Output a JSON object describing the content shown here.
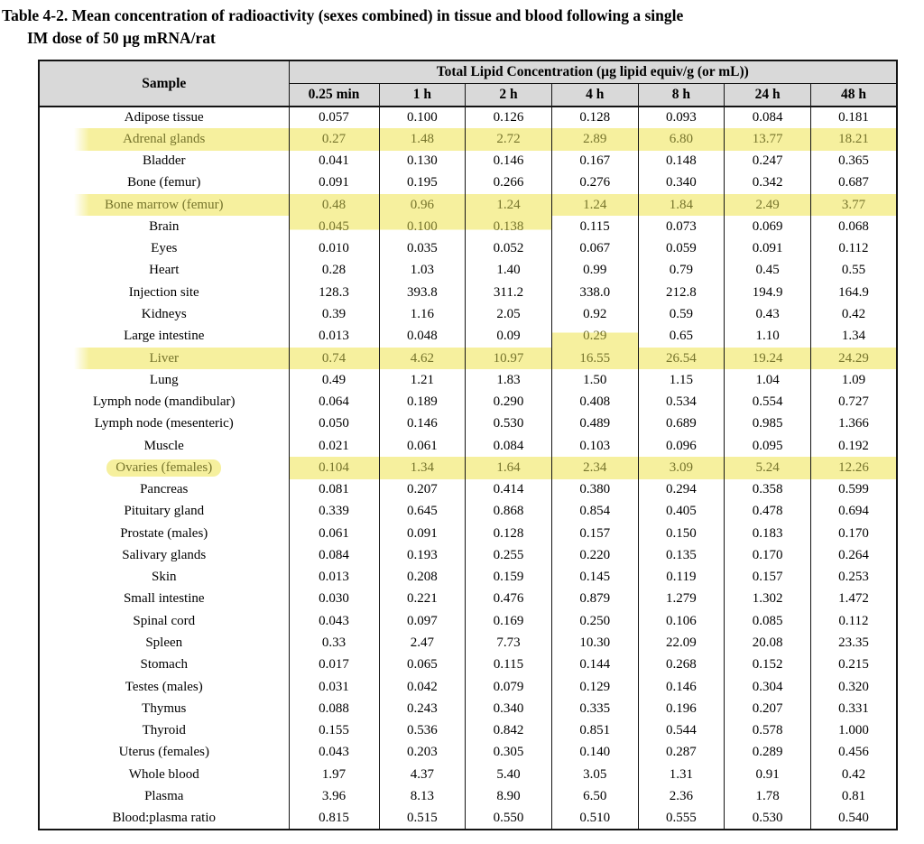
{
  "title": {
    "line1": "Table 4-2. Mean concentration of radioactivity (sexes combined) in tissue and blood following a single",
    "line2": "IM dose of 50 µg mRNA/rat"
  },
  "colors": {
    "highlight_bg": "#f6f09e",
    "highlight_text": "#76742c",
    "header_bg": "#d9d9d9",
    "border": "#141414"
  },
  "table": {
    "sample_header": "Sample",
    "group_header": "Total Lipid Concentration (µg lipid equiv/g (or mL))",
    "time_headers": [
      "0.25 min",
      "1 h",
      "2 h",
      "4 h",
      "8 h",
      "24 h",
      "48 h"
    ],
    "rows": [
      {
        "sample": "Adipose tissue",
        "values": [
          "0.057",
          "0.100",
          "0.126",
          "0.128",
          "0.093",
          "0.084",
          "0.181"
        ]
      },
      {
        "sample": "Adrenal glands",
        "values": [
          "0.27",
          "1.48",
          "2.72",
          "2.89",
          "6.80",
          "13.77",
          "18.21"
        ],
        "hl": "full",
        "label_hl": "band"
      },
      {
        "sample": "Bladder",
        "values": [
          "0.041",
          "0.130",
          "0.146",
          "0.167",
          "0.148",
          "0.247",
          "0.365"
        ]
      },
      {
        "sample": "Bone (femur)",
        "values": [
          "0.091",
          "0.195",
          "0.266",
          "0.276",
          "0.340",
          "0.342",
          "0.687"
        ]
      },
      {
        "sample": "Bone marrow (femur)",
        "values": [
          "0.48",
          "0.96",
          "1.24",
          "1.24",
          "1.84",
          "2.49",
          "3.77"
        ],
        "hl": "full",
        "label_hl": "band"
      },
      {
        "sample": "Brain",
        "values": [
          "0.045",
          "0.100",
          "0.138",
          "0.115",
          "0.073",
          "0.069",
          "0.068"
        ],
        "hl_partial": {
          "cells": [
            0,
            1,
            2
          ],
          "pos": "top"
        }
      },
      {
        "sample": "Eyes",
        "values": [
          "0.010",
          "0.035",
          "0.052",
          "0.067",
          "0.059",
          "0.091",
          "0.112"
        ]
      },
      {
        "sample": "Heart",
        "values": [
          "0.28",
          "1.03",
          "1.40",
          "0.99",
          "0.79",
          "0.45",
          "0.55"
        ]
      },
      {
        "sample": "Injection site",
        "values": [
          "128.3",
          "393.8",
          "311.2",
          "338.0",
          "212.8",
          "194.9",
          "164.9"
        ]
      },
      {
        "sample": "Kidneys",
        "values": [
          "0.39",
          "1.16",
          "2.05",
          "0.92",
          "0.59",
          "0.43",
          "0.42"
        ]
      },
      {
        "sample": "Large intestine",
        "values": [
          "0.013",
          "0.048",
          "0.09",
          "0.29",
          "0.65",
          "1.10",
          "1.34"
        ],
        "hl_partial": {
          "cells": [
            3
          ],
          "pos": "bottom"
        }
      },
      {
        "sample": "Liver",
        "values": [
          "0.74",
          "4.62",
          "10.97",
          "16.55",
          "26.54",
          "19.24",
          "24.29"
        ],
        "hl": "full",
        "label_hl": "band"
      },
      {
        "sample": "Lung",
        "values": [
          "0.49",
          "1.21",
          "1.83",
          "1.50",
          "1.15",
          "1.04",
          "1.09"
        ]
      },
      {
        "sample": "Lymph node (mandibular)",
        "values": [
          "0.064",
          "0.189",
          "0.290",
          "0.408",
          "0.534",
          "0.554",
          "0.727"
        ]
      },
      {
        "sample": "Lymph node (mesenteric)",
        "values": [
          "0.050",
          "0.146",
          "0.530",
          "0.489",
          "0.689",
          "0.985",
          "1.366"
        ]
      },
      {
        "sample": "Muscle",
        "values": [
          "0.021",
          "0.061",
          "0.084",
          "0.103",
          "0.096",
          "0.095",
          "0.192"
        ]
      },
      {
        "sample": "Ovaries (females)",
        "values": [
          "0.104",
          "1.34",
          "1.64",
          "2.34",
          "3.09",
          "5.24",
          "12.26"
        ],
        "hl": "full",
        "label_hl": "blob"
      },
      {
        "sample": "Pancreas",
        "values": [
          "0.081",
          "0.207",
          "0.414",
          "0.380",
          "0.294",
          "0.358",
          "0.599"
        ]
      },
      {
        "sample": "Pituitary gland",
        "values": [
          "0.339",
          "0.645",
          "0.868",
          "0.854",
          "0.405",
          "0.478",
          "0.694"
        ]
      },
      {
        "sample": "Prostate (males)",
        "values": [
          "0.061",
          "0.091",
          "0.128",
          "0.157",
          "0.150",
          "0.183",
          "0.170"
        ]
      },
      {
        "sample": "Salivary glands",
        "values": [
          "0.084",
          "0.193",
          "0.255",
          "0.220",
          "0.135",
          "0.170",
          "0.264"
        ]
      },
      {
        "sample": "Skin",
        "values": [
          "0.013",
          "0.208",
          "0.159",
          "0.145",
          "0.119",
          "0.157",
          "0.253"
        ]
      },
      {
        "sample": "Small intestine",
        "values": [
          "0.030",
          "0.221",
          "0.476",
          "0.879",
          "1.279",
          "1.302",
          "1.472"
        ]
      },
      {
        "sample": "Spinal cord",
        "values": [
          "0.043",
          "0.097",
          "0.169",
          "0.250",
          "0.106",
          "0.085",
          "0.112"
        ]
      },
      {
        "sample": "Spleen",
        "values": [
          "0.33",
          "2.47",
          "7.73",
          "10.30",
          "22.09",
          "20.08",
          "23.35"
        ]
      },
      {
        "sample": "Stomach",
        "values": [
          "0.017",
          "0.065",
          "0.115",
          "0.144",
          "0.268",
          "0.152",
          "0.215"
        ]
      },
      {
        "sample": "Testes (males)",
        "values": [
          "0.031",
          "0.042",
          "0.079",
          "0.129",
          "0.146",
          "0.304",
          "0.320"
        ]
      },
      {
        "sample": "Thymus",
        "values": [
          "0.088",
          "0.243",
          "0.340",
          "0.335",
          "0.196",
          "0.207",
          "0.331"
        ]
      },
      {
        "sample": "Thyroid",
        "values": [
          "0.155",
          "0.536",
          "0.842",
          "0.851",
          "0.544",
          "0.578",
          "1.000"
        ]
      },
      {
        "sample": "Uterus (females)",
        "values": [
          "0.043",
          "0.203",
          "0.305",
          "0.140",
          "0.287",
          "0.289",
          "0.456"
        ]
      },
      {
        "sample": "Whole blood",
        "values": [
          "1.97",
          "4.37",
          "5.40",
          "3.05",
          "1.31",
          "0.91",
          "0.42"
        ]
      },
      {
        "sample": "Plasma",
        "values": [
          "3.96",
          "8.13",
          "8.90",
          "6.50",
          "2.36",
          "1.78",
          "0.81"
        ]
      },
      {
        "sample": "Blood:plasma ratio",
        "values": [
          "0.815",
          "0.515",
          "0.550",
          "0.510",
          "0.555",
          "0.530",
          "0.540"
        ]
      }
    ]
  }
}
